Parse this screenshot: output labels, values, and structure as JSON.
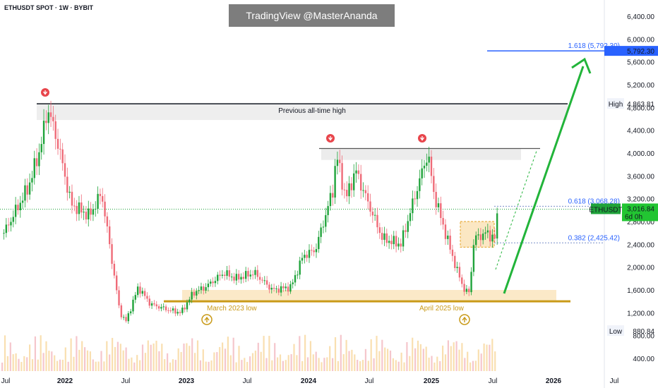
{
  "header": {
    "symbol": "ETHUSDT SPOT · 1W · BYBIT",
    "watermark": "TradingView @MasterAnanda"
  },
  "colors": {
    "up": "#1fa33a",
    "down": "#ef6b78",
    "gold": "#c99a18",
    "blue": "#2962ff",
    "arrow": "#22b43a"
  },
  "chart_data": {
    "type": "candlestick",
    "ylim": [
      300,
      6700
    ],
    "y_ticks": [
      "6,400.00",
      "6,000.00",
      "5,600.00",
      "5,200.00",
      "4,800.00",
      "4,400.00",
      "4,000.00",
      "3,600.00",
      "3,200.00",
      "2,800.00",
      "2,400.00",
      "2,000.00",
      "1,600.00",
      "1,200.00",
      "800.00",
      "400.00"
    ],
    "x_ticks": [
      "Jul",
      "2022",
      "Jul",
      "2023",
      "Jul",
      "2024",
      "Jul",
      "2025",
      "Jul",
      "2026",
      "Jul"
    ],
    "price_path": [
      [
        2021.5,
        2600
      ],
      [
        2021.7,
        3400
      ],
      [
        2021.8,
        4100
      ],
      [
        2021.86,
        4800
      ],
      [
        2021.95,
        4100
      ],
      [
        2022.05,
        3100
      ],
      [
        2022.2,
        2900
      ],
      [
        2022.3,
        3300
      ],
      [
        2022.4,
        1900
      ],
      [
        2022.45,
        1200
      ],
      [
        2022.5,
        1050
      ],
      [
        2022.6,
        1650
      ],
      [
        2022.7,
        1350
      ],
      [
        2022.85,
        1250
      ],
      [
        2022.95,
        1200
      ],
      [
        2023.05,
        1550
      ],
      [
        2023.15,
        1650
      ],
      [
        2023.3,
        1900
      ],
      [
        2023.4,
        1800
      ],
      [
        2023.55,
        1900
      ],
      [
        2023.7,
        1600
      ],
      [
        2023.85,
        1650
      ],
      [
        2023.95,
        2200
      ],
      [
        2024.05,
        2300
      ],
      [
        2024.2,
        3400
      ],
      [
        2024.22,
        4000
      ],
      [
        2024.3,
        3200
      ],
      [
        2024.38,
        3700
      ],
      [
        2024.45,
        3300
      ],
      [
        2024.6,
        2500
      ],
      [
        2024.75,
        2400
      ],
      [
        2024.9,
        3500
      ],
      [
        2024.97,
        4000
      ],
      [
        2025.02,
        3300
      ],
      [
        2025.1,
        2700
      ],
      [
        2025.2,
        2000
      ],
      [
        2025.27,
        1600
      ],
      [
        2025.31,
        1550
      ],
      [
        2025.35,
        2500
      ],
      [
        2025.45,
        2600
      ],
      [
        2025.52,
        2500
      ],
      [
        2025.55,
        3100
      ]
    ],
    "lines": {
      "previous_all_time_high": {
        "value": 4863.81,
        "label": "Previous all-time high"
      },
      "fib_1618": {
        "value": 5792.3,
        "label": "1.618 (5,792.30)"
      },
      "fib_0618": {
        "value": 3068.28,
        "label": "0.618 (3,068.28)"
      },
      "fib_0382": {
        "value": 2425.42,
        "label": "0.382 (2,425.42)"
      },
      "support": {
        "value": 1400
      }
    },
    "annotations": {
      "march_low": "March 2023 low",
      "april_low": "April 2025 low"
    },
    "price_tags": {
      "fib": "5,792.30",
      "high_label": "High",
      "high_value": "4,863.81",
      "current_symbol": "ETHUSDT",
      "current_price": "3,016.84",
      "countdown": "6d 0h",
      "low_label": "Low",
      "low_value": "880.84"
    }
  }
}
